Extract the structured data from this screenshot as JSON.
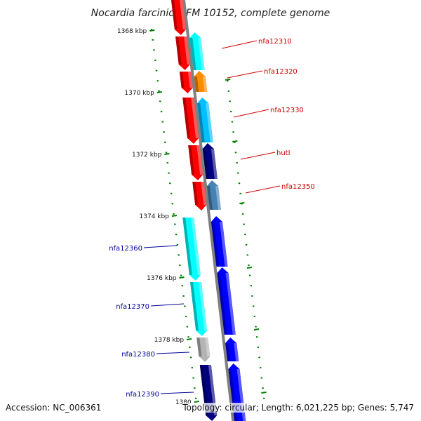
{
  "title": "Nocardia farcinica IFM 10152, complete genome",
  "accession": "Accession: NC_006361",
  "info": "Topology: circular; Length: 6,021,225 bp; Genes: 5,747",
  "scale": {
    "ticks": [
      {
        "label": "1368 kbp"
      },
      {
        "label": "1370 kbp"
      },
      {
        "label": "1372 kbp"
      },
      {
        "label": "1374 kbp"
      },
      {
        "label": "1376 kbp"
      },
      {
        "label": "1378 kbp"
      },
      {
        "label": "1380"
      }
    ]
  },
  "genes": [
    {
      "label": "",
      "strand": "minus",
      "color": "#ff0000"
    },
    {
      "label": "",
      "strand": "minus",
      "color": "#ff0000"
    },
    {
      "label": "",
      "strand": "minus",
      "color": "#ff0000"
    },
    {
      "label": "",
      "strand": "minus",
      "color": "#ff0000"
    },
    {
      "label": "",
      "strand": "minus",
      "color": "#ff0000"
    },
    {
      "label": "",
      "strand": "minus",
      "color": "#ff0000"
    },
    {
      "label": "nfa12310",
      "strand": "plus",
      "color": "#00ffff"
    },
    {
      "label": "nfa12320",
      "strand": "plus",
      "color": "#ff8c00"
    },
    {
      "label": "nfa12330",
      "strand": "plus",
      "color": "#00bfff"
    },
    {
      "label": "hutI",
      "strand": "plus",
      "color": "#000080"
    },
    {
      "label": "nfa12350",
      "strand": "plus",
      "color": "#4682b4"
    },
    {
      "label": "nfa12360",
      "strand": "minus",
      "color": "#00ffff"
    },
    {
      "label": "nfa12370",
      "strand": "minus",
      "color": "#00ffff"
    },
    {
      "label": "nfa12380",
      "strand": "minus",
      "color": "#b4b4b4"
    },
    {
      "label": "nfa12390",
      "strand": "minus",
      "color": "#000080"
    },
    {
      "label": "",
      "strand": "plus",
      "color": "#0000ff"
    },
    {
      "label": "",
      "strand": "plus",
      "color": "#0000ff"
    },
    {
      "label": "",
      "strand": "plus",
      "color": "#0000ff"
    },
    {
      "label": "",
      "strand": "plus",
      "color": "#0000ff"
    }
  ],
  "colors": {
    "backbone": "#808080",
    "ticks": "#008000",
    "label_upper": "#cc0000",
    "label_lower": "#000099"
  }
}
